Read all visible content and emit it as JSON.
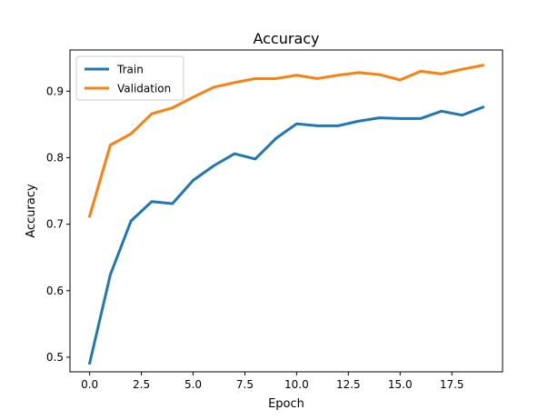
{
  "chart_data": {
    "type": "line",
    "title": "Accuracy",
    "xlabel": "Epoch",
    "ylabel": "Accuracy",
    "x": [
      0,
      1,
      2,
      3,
      4,
      5,
      6,
      7,
      8,
      9,
      10,
      11,
      12,
      13,
      14,
      15,
      16,
      17,
      18,
      19
    ],
    "xlim": [
      -0.95,
      19.95
    ],
    "ylim": [
      0.478,
      0.962
    ],
    "xticks": [
      0.0,
      2.5,
      5.0,
      7.5,
      10.0,
      12.5,
      15.0,
      17.5
    ],
    "xtick_labels": [
      "0.0",
      "2.5",
      "5.0",
      "7.5",
      "10.0",
      "12.5",
      "15.0",
      "17.5"
    ],
    "yticks": [
      0.5,
      0.6,
      0.7,
      0.8,
      0.9
    ],
    "ytick_labels": [
      "0.5",
      "0.6",
      "0.7",
      "0.8",
      "0.9"
    ],
    "grid": false,
    "legend_position": "upper-left",
    "series": [
      {
        "name": "Train",
        "color": "#1f77b4",
        "values": [
          0.491,
          0.624,
          0.705,
          0.734,
          0.731,
          0.766,
          0.788,
          0.806,
          0.798,
          0.829,
          0.851,
          0.848,
          0.848,
          0.855,
          0.86,
          0.859,
          0.859,
          0.87,
          0.864,
          0.876
        ]
      },
      {
        "name": "Validation",
        "color": "#ff7f0e",
        "values": [
          0.712,
          0.819,
          0.836,
          0.866,
          0.875,
          0.891,
          0.906,
          0.913,
          0.919,
          0.919,
          0.924,
          0.919,
          0.924,
          0.928,
          0.925,
          0.917,
          0.93,
          0.926,
          0.933,
          0.939
        ]
      }
    ]
  }
}
